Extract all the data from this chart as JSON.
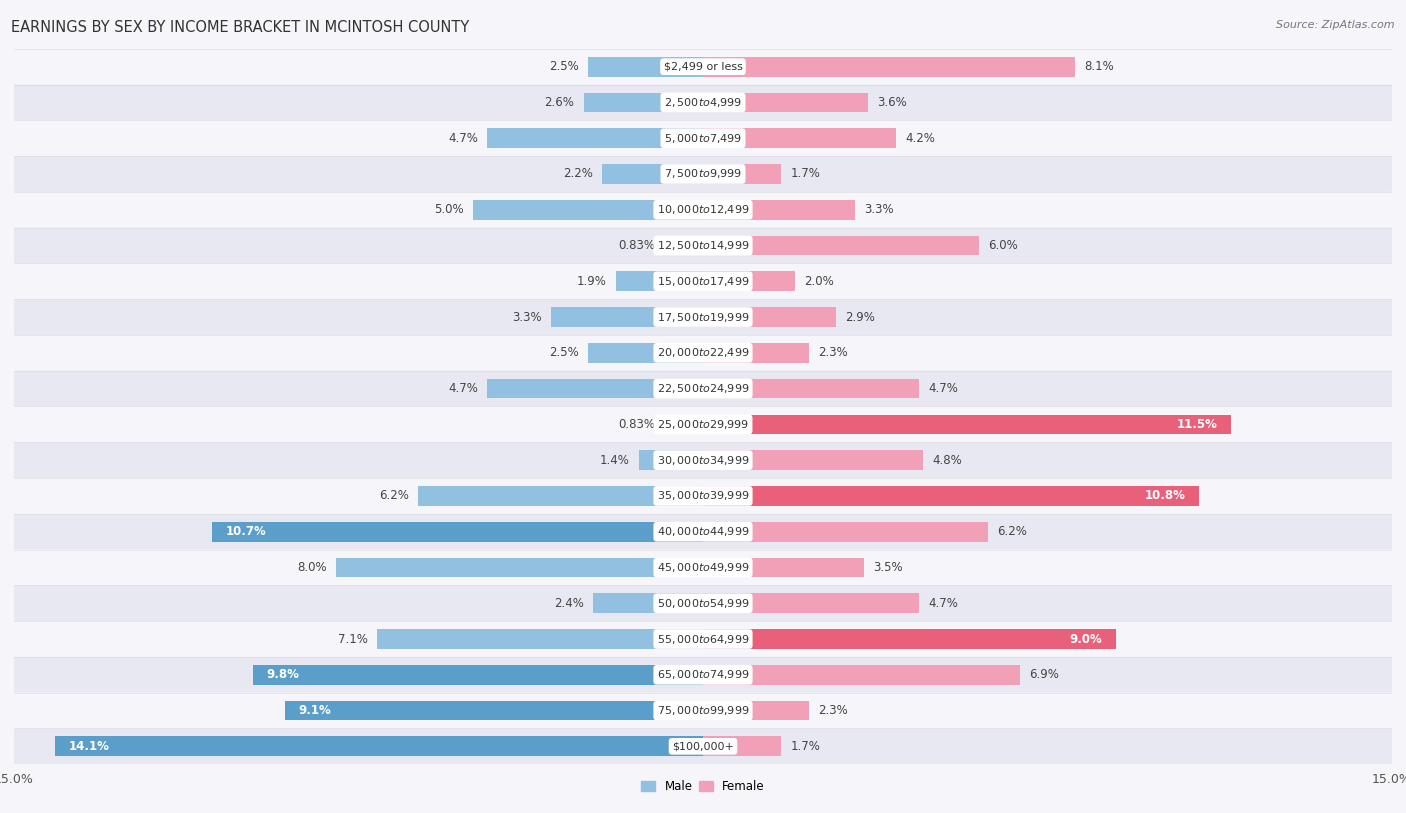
{
  "title": "EARNINGS BY SEX BY INCOME BRACKET IN MCINTOSH COUNTY",
  "source": "Source: ZipAtlas.com",
  "categories": [
    "$2,499 or less",
    "$2,500 to $4,999",
    "$5,000 to $7,499",
    "$7,500 to $9,999",
    "$10,000 to $12,499",
    "$12,500 to $14,999",
    "$15,000 to $17,499",
    "$17,500 to $19,999",
    "$20,000 to $22,499",
    "$22,500 to $24,999",
    "$25,000 to $29,999",
    "$30,000 to $34,999",
    "$35,000 to $39,999",
    "$40,000 to $44,999",
    "$45,000 to $49,999",
    "$50,000 to $54,999",
    "$55,000 to $64,999",
    "$65,000 to $74,999",
    "$75,000 to $99,999",
    "$100,000+"
  ],
  "male_values": [
    2.5,
    2.6,
    4.7,
    2.2,
    5.0,
    0.83,
    1.9,
    3.3,
    2.5,
    4.7,
    0.83,
    1.4,
    6.2,
    10.7,
    8.0,
    2.4,
    7.1,
    9.8,
    9.1,
    14.1
  ],
  "female_values": [
    8.1,
    3.6,
    4.2,
    1.7,
    3.3,
    6.0,
    2.0,
    2.9,
    2.3,
    4.7,
    11.5,
    4.8,
    10.8,
    6.2,
    3.5,
    4.7,
    9.0,
    6.9,
    2.3,
    1.7
  ],
  "male_color": "#92c0e0",
  "female_color": "#f2a0b8",
  "male_highlight_color": "#5b9ec9",
  "female_highlight_color": "#e8607a",
  "male_highlight_thresh": 9.0,
  "female_highlight_thresh": 9.0,
  "xlim": 15.0,
  "row_bg_even": "#f5f5fa",
  "row_bg_odd": "#e8e8f2",
  "title_fontsize": 10.5,
  "label_fontsize": 8.5,
  "source_fontsize": 8.0,
  "tick_fontsize": 9.0,
  "cat_label_fontsize": 8.0
}
